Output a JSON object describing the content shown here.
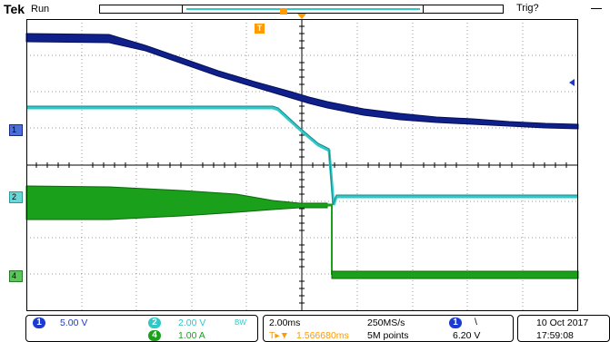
{
  "header": {
    "brand": "Tek",
    "acq_state": "Run",
    "trigger_state": "Trig?"
  },
  "markers": {
    "trigger_position": "T",
    "ch1": "1",
    "ch2": "2",
    "ch4": "4"
  },
  "readout": {
    "ch1": {
      "number": "1",
      "scale": "5.00 V",
      "color": "#1a3ad0"
    },
    "ch2": {
      "number": "2",
      "scale": "2.00 V",
      "bw": "BW",
      "color": "#2ec8c8"
    },
    "ch4": {
      "number": "4",
      "scale": "1.00 A",
      "color": "#1aa01a"
    },
    "timebase": "2.00ms",
    "sample_rate": "250MS/s",
    "record_length": "5M points",
    "trigger_delay": "1.566680ms",
    "trigger_source": "1",
    "trigger_slope": "\\",
    "trigger_level": "6.20 V",
    "date": "10 Oct  2017",
    "time": "17:59:08"
  },
  "colors": {
    "ch1": "#10208a",
    "ch2": "#2ec8c8",
    "ch4": "#1aa01a",
    "trigger": "#ff9a00"
  }
}
